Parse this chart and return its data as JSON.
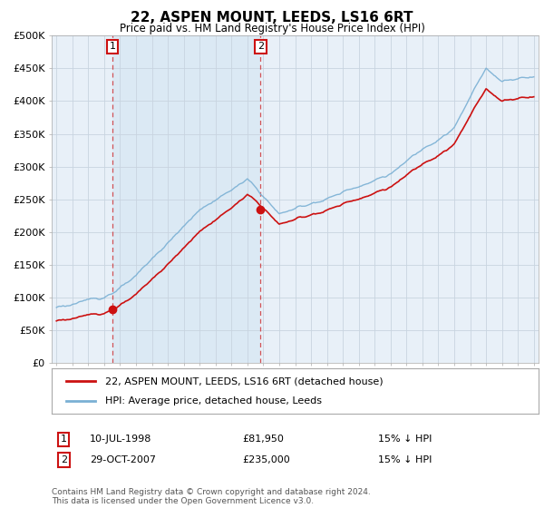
{
  "title": "22, ASPEN MOUNT, LEEDS, LS16 6RT",
  "subtitle": "Price paid vs. HM Land Registry's House Price Index (HPI)",
  "hpi_color": "#7ab0d4",
  "price_color": "#cc1111",
  "background_plot": "#e8f0f8",
  "background_fig": "#ffffff",
  "grid_color": "#c8d4e0",
  "ylim": [
    0,
    500000
  ],
  "yticks": [
    0,
    50000,
    100000,
    150000,
    200000,
    250000,
    300000,
    350000,
    400000,
    450000,
    500000
  ],
  "ytick_labels": [
    "£0",
    "£50K",
    "£100K",
    "£150K",
    "£200K",
    "£250K",
    "£300K",
    "£350K",
    "£400K",
    "£450K",
    "£500K"
  ],
  "transaction1_date": "10-JUL-1998",
  "transaction1_price": 81950,
  "transaction1_hpi": "15% ↓ HPI",
  "transaction1_x": 1998.53,
  "transaction2_date": "29-OCT-2007",
  "transaction2_price": 235000,
  "transaction2_hpi": "15% ↓ HPI",
  "transaction2_x": 2007.83,
  "legend_entry1": "22, ASPEN MOUNT, LEEDS, LS16 6RT (detached house)",
  "legend_entry2": "HPI: Average price, detached house, Leeds",
  "footer": "Contains HM Land Registry data © Crown copyright and database right 2024.\nThis data is licensed under the Open Government Licence v3.0.",
  "xmin": 1995,
  "xmax": 2025
}
